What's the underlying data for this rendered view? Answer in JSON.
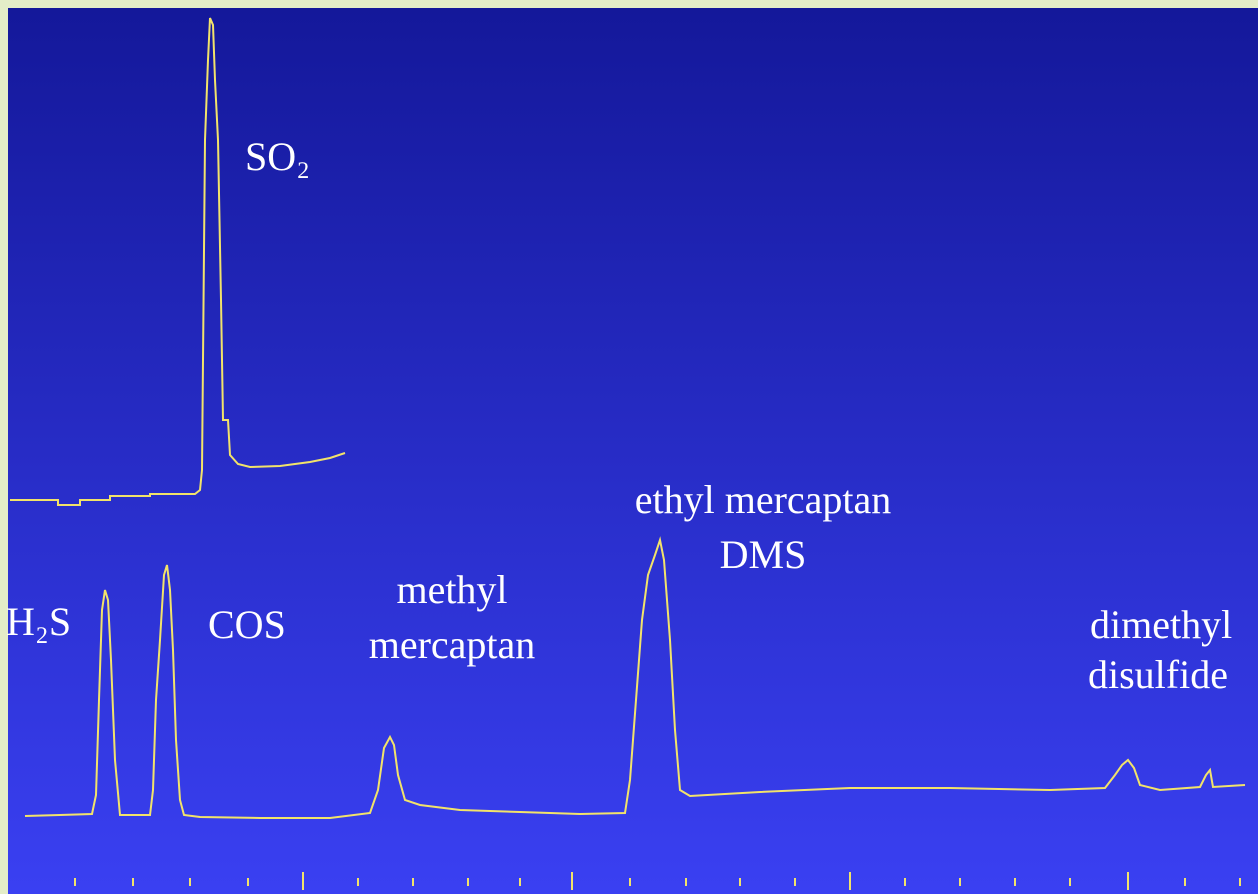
{
  "peaks": [
    {
      "lines": [
        "SO₂"
      ]
    },
    {
      "lines": [
        "H₂S"
      ]
    },
    {
      "lines": [
        "COS"
      ]
    },
    {
      "lines": [
        "methyl",
        "mercaptan"
      ]
    },
    {
      "lines": [
        "ethyl mercaptan",
        "DMS"
      ]
    },
    {
      "lines": [
        "dimethyl",
        "disulfide"
      ]
    }
  ]
}
